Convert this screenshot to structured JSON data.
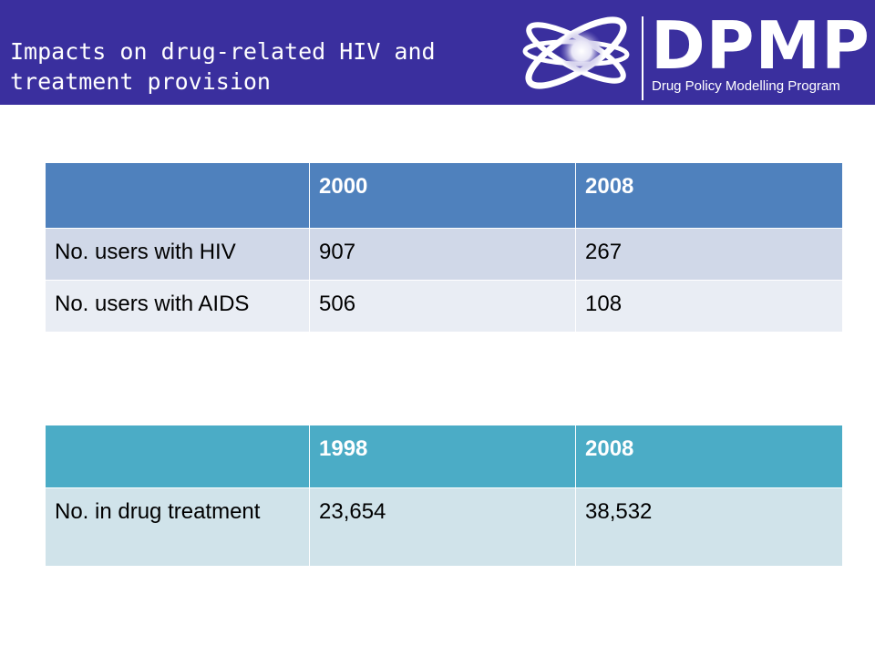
{
  "header": {
    "title": "Impacts on drug-related HIV and treatment provision",
    "logo_text": "DPMP",
    "logo_subtitle": "Drug Policy Modelling Program",
    "background_color": "#3a2f9e"
  },
  "table1": {
    "header_color": "#4f81bd",
    "headers": [
      "",
      "2000",
      "2008"
    ],
    "rows": [
      [
        "No. users with HIV",
        "907",
        "267"
      ],
      [
        "No. users with AIDS",
        "506",
        "108"
      ]
    ]
  },
  "table2": {
    "header_color": "#4bacc6",
    "headers": [
      "",
      "1998",
      "2008"
    ],
    "rows": [
      [
        "No. in drug treatment",
        "23,654",
        "38,532"
      ]
    ]
  }
}
